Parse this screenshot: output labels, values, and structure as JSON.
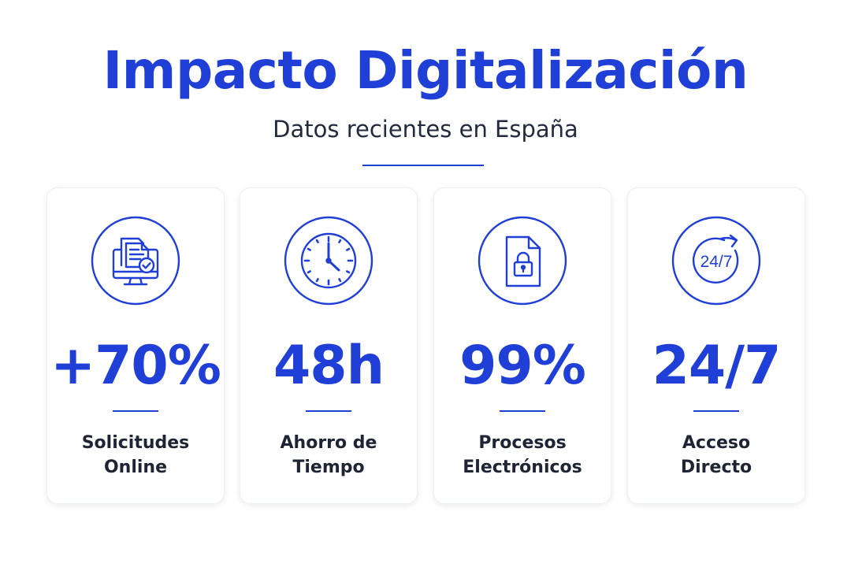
{
  "header": {
    "title": "Impacto Digitalización",
    "subtitle": "Datos recientes en España"
  },
  "colors": {
    "accent": "#1f3fd6",
    "text": "#1e2433"
  },
  "cards": [
    {
      "icon": "computer-document-check-icon",
      "value": "+70%",
      "label_line1": "Solicitudes",
      "label_line2": "Online"
    },
    {
      "icon": "clock-icon",
      "value": "48h",
      "label_line1": "Ahorro de",
      "label_line2": "Tiempo"
    },
    {
      "icon": "locked-document-icon",
      "value": "99%",
      "label_line1": "Procesos",
      "label_line2": "Electrónicos"
    },
    {
      "icon": "availability-24-7-icon",
      "value": "24/7",
      "label_line1": "Acceso",
      "label_line2": "Directo",
      "icon_text": "24/7"
    }
  ]
}
